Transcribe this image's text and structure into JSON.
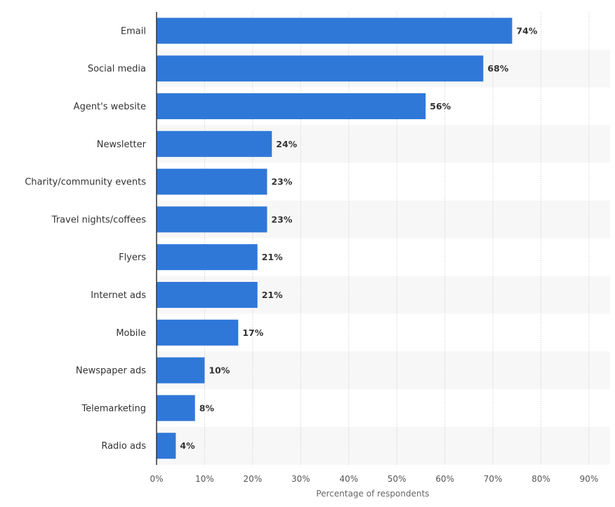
{
  "chart_data": {
    "type": "bar",
    "orientation": "horizontal",
    "categories": [
      "Email",
      "Social media",
      "Agent's website",
      "Newsletter",
      "Charity/community events",
      "Travel nights/coffees",
      "Flyers",
      "Internet ads",
      "Mobile",
      "Newspaper ads",
      "Telemarketing",
      "Radio ads"
    ],
    "values": [
      74,
      68,
      56,
      24,
      23,
      23,
      21,
      21,
      17,
      10,
      8,
      4
    ],
    "value_labels": [
      "74%",
      "68%",
      "56%",
      "24%",
      "23%",
      "23%",
      "21%",
      "21%",
      "17%",
      "10%",
      "8%",
      "4%"
    ],
    "xticks": [
      "0%",
      "10%",
      "20%",
      "30%",
      "40%",
      "50%",
      "60%",
      "70%",
      "80%",
      "90%"
    ],
    "xlim": [
      0,
      90
    ],
    "xlabel": "Percentage of respondents",
    "ylabel": "",
    "grid": "vertical-dotted",
    "bar_color": "#2f78d8",
    "stripe_color": "#f7f7f7"
  }
}
